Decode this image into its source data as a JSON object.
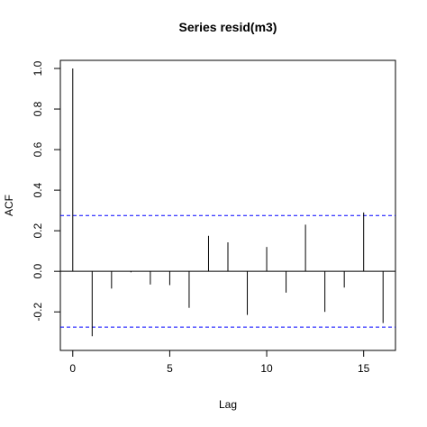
{
  "chart_data": {
    "type": "acf",
    "title": "Series  resid(m3)",
    "xlabel": "Lag",
    "ylabel": "ACF",
    "xlim": [
      -0.64,
      16.64
    ],
    "ylim": [
      -0.39,
      1.04
    ],
    "x_ticks": [
      0,
      5,
      10,
      15
    ],
    "y_ticks": [
      -0.2,
      0.0,
      0.2,
      0.4,
      0.6,
      0.8,
      1.0
    ],
    "y_tick_labels": [
      "-0.2",
      "0.0",
      "0.2",
      "0.4",
      "0.6",
      "0.8",
      "1.0"
    ],
    "lags": [
      0,
      1,
      2,
      3,
      4,
      5,
      6,
      7,
      8,
      9,
      10,
      11,
      12,
      13,
      14,
      15,
      16
    ],
    "acf": [
      1.0,
      -0.32,
      -0.085,
      -0.005,
      -0.065,
      -0.068,
      -0.18,
      0.175,
      0.143,
      -0.215,
      0.12,
      -0.105,
      0.23,
      -0.2,
      -0.08,
      0.29,
      -0.255
    ],
    "confidence_bound": 0.275,
    "confidence_color": "#0000ff",
    "line_color": "#000000",
    "grid": false
  }
}
